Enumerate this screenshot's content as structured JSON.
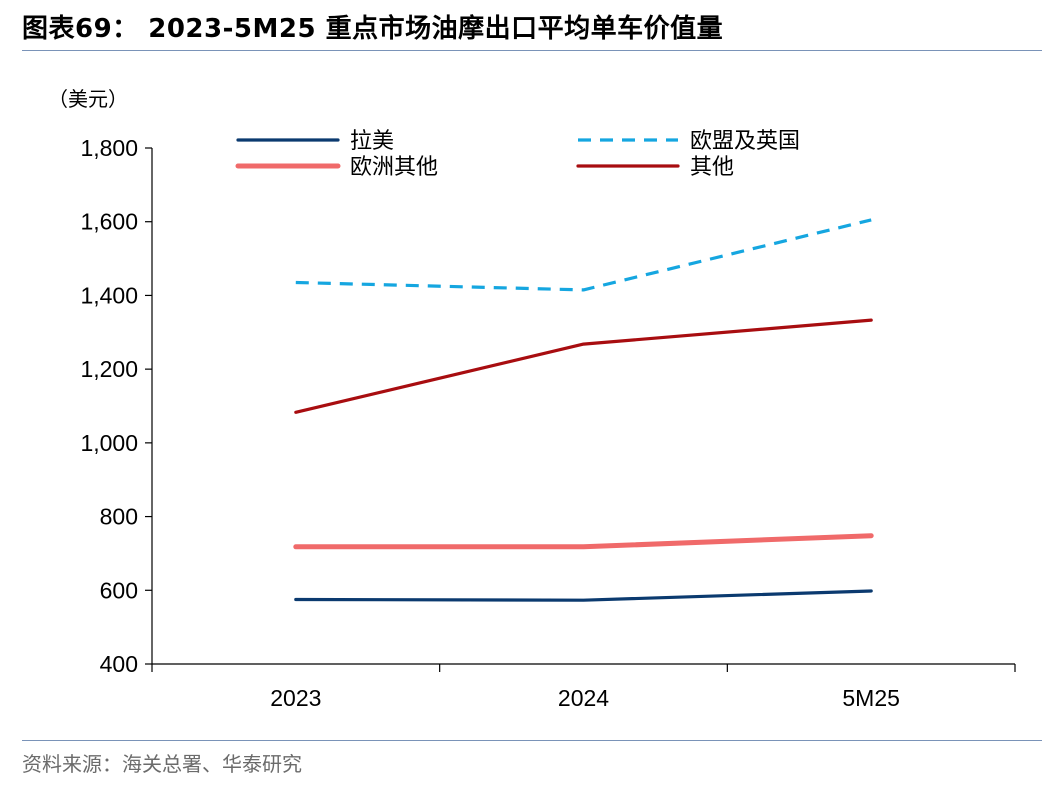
{
  "figure": {
    "title": "图表69：  2023-5M25 重点市场油摩出口平均单车价值量",
    "source": "资料来源：海关总署、华泰研究"
  },
  "chart_data": {
    "type": "line",
    "unit_label": "（美元）",
    "categories": [
      "2023",
      "2024",
      "5M25"
    ],
    "ylim": [
      400,
      1800
    ],
    "yticks": [
      400,
      600,
      800,
      1000,
      1200,
      1400,
      1600,
      1800
    ],
    "ytick_labels": [
      "400",
      "600",
      "800",
      "1,000",
      "1,200",
      "1,400",
      "1,600",
      "1,800"
    ],
    "grid": false,
    "legend_position": "top",
    "series": [
      {
        "name": "拉美",
        "values": [
          575,
          573,
          598
        ],
        "color": "#0b3a6f",
        "style": "solid"
      },
      {
        "name": "欧盟及英国",
        "values": [
          1435,
          1415,
          1605
        ],
        "color": "#15a6e0",
        "style": "dashed"
      },
      {
        "name": "欧洲其他",
        "values": [
          718,
          718,
          748
        ],
        "color": "#f06a6a",
        "style": "solid-thick"
      },
      {
        "name": "其他",
        "values": [
          1083,
          1268,
          1333
        ],
        "color": "#a80d10",
        "style": "solid"
      }
    ]
  }
}
